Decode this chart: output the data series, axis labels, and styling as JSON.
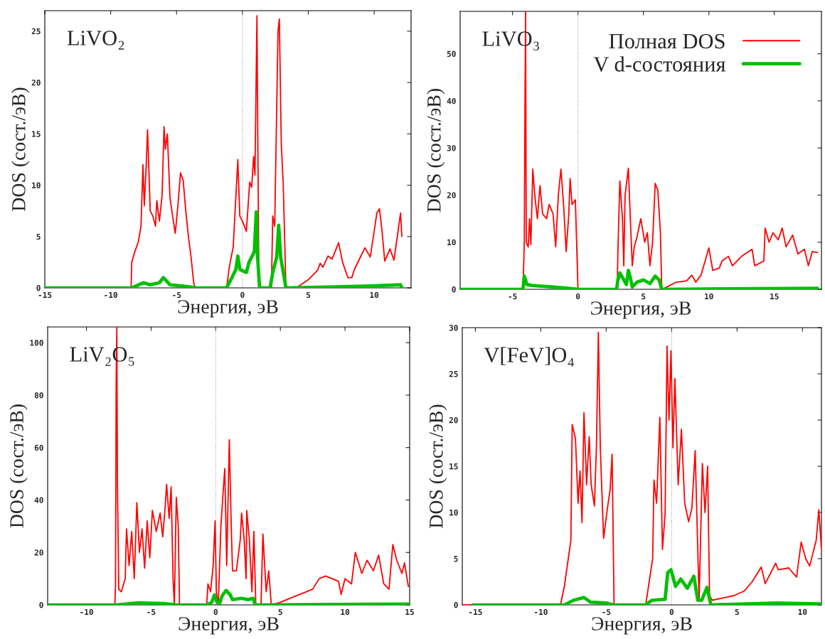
{
  "chart_data": [
    {
      "type": "line",
      "title": "LiVO₂",
      "xlabel": "Энергия, эВ",
      "ylabel": "DOS (сост./эВ)",
      "xlim": [
        -15,
        12.8
      ],
      "ylim": [
        0,
        27
      ],
      "xticks": [
        -15,
        -10,
        -5,
        0,
        5,
        10
      ],
      "yticks": [
        0,
        5,
        10,
        15,
        20,
        25
      ],
      "grid": false,
      "legend": false,
      "ref_lines": [
        {
          "axis": "x",
          "value": 0,
          "color": "#999999",
          "line_style": "dotted"
        }
      ],
      "series": [
        {
          "color": "#ff0000",
          "x": [
            -15,
            -8.45,
            -8.4,
            -8.2,
            -7.9,
            -7.7,
            -7.55,
            -7.45,
            -7.3,
            -7.2,
            -7.0,
            -6.8,
            -6.6,
            -6.5,
            -6.3,
            -6.1,
            -5.95,
            -5.85,
            -5.7,
            -5.5,
            -5.3,
            -5.1,
            -4.9,
            -4.7,
            -4.5,
            -4.3,
            -4.1,
            -3.9,
            -3.7,
            -3.6,
            -1.2,
            -1.0,
            -0.7,
            -0.35,
            -0.2,
            0,
            0.3,
            0.55,
            0.7,
            0.85,
            0.95,
            1.1,
            1.25,
            2.2,
            2.3,
            2.45,
            2.7,
            2.8,
            2.95,
            3.1,
            3.3,
            4.1,
            5,
            5.7,
            5.9,
            6.1,
            6.5,
            6.8,
            7.3,
            7.6,
            8,
            8.3,
            8.5,
            9.3,
            9.7,
            10.0,
            10.2,
            10.4,
            10.6,
            10.8,
            11.2,
            11.5,
            11.8,
            12.0,
            12.1
          ],
          "values": [
            0,
            0,
            2.5,
            3.4,
            4.5,
            6,
            12,
            8,
            12,
            15.4,
            7.5,
            7,
            6,
            8.5,
            6.5,
            9,
            15.7,
            13.5,
            15,
            8.8,
            7,
            5.3,
            8,
            11.2,
            10.5,
            7.5,
            5,
            3,
            0.5,
            0,
            0,
            2,
            4,
            12.5,
            7,
            6.5,
            5.5,
            10.3,
            9.8,
            12.8,
            11,
            26.5,
            0,
            0,
            7,
            6,
            25,
            26.2,
            14,
            10,
            0,
            0,
            0.8,
            1.7,
            2.4,
            2.0,
            3.1,
            2.8,
            4.4,
            2.5,
            1.0,
            1.0,
            1.8,
            3.9,
            3.0,
            5.5,
            7.3,
            7.7,
            5.5,
            2.6,
            3.8,
            2.7,
            5.4,
            7.3,
            5.0
          ]
        },
        {
          "color": "#00c000",
          "x": [
            -15,
            -8.4,
            -7.5,
            -7,
            -6.3,
            -6.0,
            -5.5,
            -4,
            -3.5,
            -1.2,
            -0.8,
            -0.5,
            -0.35,
            -0.2,
            0.3,
            0.5,
            0.9,
            1.05,
            1.15,
            1.3,
            2.1,
            2.3,
            2.6,
            2.75,
            2.9,
            3.3,
            7,
            10,
            12,
            12.1
          ],
          "values": [
            0,
            0,
            0.5,
            0.3,
            0.5,
            1.0,
            0.3,
            0.1,
            0,
            0,
            1,
            1.8,
            3.1,
            1.8,
            1.5,
            2.5,
            3.5,
            7.4,
            3,
            0,
            0,
            1.5,
            3,
            6.1,
            3,
            0,
            0.1,
            0.2,
            0.3,
            0
          ]
        }
      ]
    },
    {
      "type": "line",
      "title": "LiVO₃",
      "xlabel": "Энергия, эВ",
      "ylabel": "DOS (сост./эВ)",
      "xlim": [
        -9,
        18.6
      ],
      "ylim": [
        0,
        59
      ],
      "xticks": [
        -5,
        0,
        5,
        10,
        15
      ],
      "yticks": [
        0,
        10,
        20,
        30,
        40,
        50
      ],
      "grid": false,
      "legend": "top right",
      "ref_lines": [
        {
          "axis": "x",
          "value": 0,
          "color": "#999999",
          "line_style": "dotted"
        }
      ],
      "series": [
        {
          "name": "Полная DOS",
          "color": "#ff0000",
          "x": [
            -9,
            -4.2,
            -4.1,
            -4.05,
            -4.0,
            -3.95,
            -3.8,
            -3.7,
            -3.6,
            -3.45,
            -3.3,
            -3.1,
            -2.9,
            -2.7,
            -2.4,
            -2.2,
            -1.9,
            -1.7,
            -1.5,
            -1.3,
            -1.1,
            -0.9,
            -0.7,
            -0.6,
            -0.45,
            -0.2,
            -0.05,
            0,
            3.0,
            3.05,
            3.2,
            3.4,
            3.5,
            3.6,
            3.85,
            4.0,
            4.15,
            4.3,
            4.5,
            4.8,
            5.1,
            5.3,
            5.5,
            5.7,
            5.9,
            6.1,
            6.3,
            6.4,
            6.6,
            7.5,
            8.3,
            8.7,
            9,
            9.4,
            10,
            10.3,
            10.8,
            11.0,
            11.5,
            11.8,
            12.5,
            13.3,
            13.5,
            14.2,
            14.3,
            14.6,
            14.9,
            15.3,
            15.6,
            15.9,
            16.4,
            16.8,
            17.3,
            17.6,
            17.9,
            18.3
          ],
          "values": [
            0,
            0,
            10,
            38,
            59,
            10,
            9,
            15,
            9.5,
            25.5,
            20,
            15,
            22,
            16,
            15,
            18,
            16,
            9,
            20,
            25.5,
            18,
            8,
            16,
            23.5,
            18,
            19,
            5,
            0,
            0,
            8,
            23,
            15,
            5,
            20,
            25.7,
            15,
            5,
            9,
            11,
            15,
            10,
            12,
            5,
            10,
            22.5,
            21,
            12,
            0,
            0.2,
            1.5,
            1.8,
            3,
            1.5,
            3,
            8.8,
            4,
            4.5,
            6,
            7,
            5,
            7,
            8.5,
            5,
            6,
            13,
            10,
            12,
            10.5,
            13,
            9,
            11.5,
            7.5,
            8.5,
            5,
            8,
            7.8
          ]
        },
        {
          "name": "V d-состояния",
          "color": "#00c000",
          "x": [
            -9,
            -4.2,
            -4.1,
            -3.9,
            -3.5,
            -2,
            -1,
            0,
            2.95,
            3.05,
            3.2,
            3.5,
            3.7,
            3.85,
            4.0,
            4.15,
            4.5,
            5.0,
            5.5,
            5.9,
            6.2,
            6.4,
            18.3
          ],
          "values": [
            0,
            0,
            2.8,
            1,
            0.8,
            0.5,
            0.3,
            0,
            0,
            2,
            3.5,
            2,
            1,
            4,
            2.5,
            0.5,
            1.5,
            2,
            1.2,
            2.8,
            2,
            0,
            0.2
          ]
        }
      ]
    },
    {
      "type": "line",
      "title": "LiV₂O₅",
      "xlabel": "Энергия, эВ",
      "ylabel": "DOS (сост./эВ)",
      "xlim": [
        -13,
        15
      ],
      "ylim": [
        0,
        106
      ],
      "xticks": [
        -10,
        -5,
        0,
        5,
        10,
        15
      ],
      "yticks": [
        0,
        20,
        40,
        60,
        80,
        100
      ],
      "grid": false,
      "legend": false,
      "ref_lines": [
        {
          "axis": "x",
          "value": 0,
          "color": "#999999",
          "line_style": "dotted"
        }
      ],
      "series": [
        {
          "color": "#ff0000",
          "x": [
            -13,
            -7.8,
            -7.75,
            -7.7,
            -7.65,
            -7.6,
            -7.5,
            -7.3,
            -7,
            -6.9,
            -6.7,
            -6.5,
            -6.3,
            -6.1,
            -5.9,
            -5.7,
            -5.5,
            -5.3,
            -5.1,
            -4.9,
            -4.6,
            -4.3,
            -4.1,
            -3.9,
            -3.8,
            -3.6,
            -3.45,
            -3.3,
            -3.2,
            -3.05,
            -2.9,
            -2.8,
            -0.7,
            -0.6,
            -0.4,
            -0.2,
            -0.05,
            0.05,
            0.2,
            0.4,
            0.6,
            0.7,
            0.85,
            1.05,
            1.2,
            1.3,
            1.6,
            1.9,
            2.0,
            2.2,
            2.35,
            2.4,
            2.6,
            2.8,
            2.95,
            3.1,
            3.5,
            3.65,
            3.9,
            4.1,
            4.3,
            5,
            6,
            7,
            7.5,
            8,
            8.5,
            9,
            9.5,
            9.7,
            10,
            10.5,
            10.8,
            11.3,
            11.7,
            12.2,
            12.6,
            13.0,
            13.4,
            13.7,
            14.0,
            14.4,
            14.6,
            14.9
          ],
          "values": [
            0,
            0,
            8,
            85,
            106,
            45,
            6,
            5,
            10,
            29,
            15,
            28,
            10,
            39,
            20,
            29,
            14,
            32,
            18,
            36,
            28,
            35,
            26,
            38,
            46,
            33,
            45,
            10,
            0,
            41,
            30,
            0,
            0,
            8,
            5,
            15,
            32,
            5,
            0,
            30,
            45,
            52,
            15,
            63,
            30,
            13,
            13,
            25,
            35,
            25,
            10,
            36,
            25,
            5,
            28,
            0,
            0,
            27,
            5,
            13,
            0,
            1,
            3,
            5,
            6,
            10,
            11,
            10,
            9,
            4,
            10,
            8,
            20,
            12,
            17,
            13,
            19,
            8,
            6,
            23,
            17,
            12,
            16,
            7
          ]
        },
        {
          "color": "#00c000",
          "x": [
            -13,
            -7.7,
            -6,
            -4,
            -3,
            -0.7,
            -0.3,
            -0.1,
            0.1,
            0.3,
            0.5,
            0.8,
            1.1,
            1.3,
            2,
            2.5,
            2.9,
            3.05,
            14.9
          ],
          "values": [
            0,
            0,
            0.8,
            0.5,
            0,
            0,
            1,
            3.8,
            1,
            0.5,
            3.5,
            5.5,
            4,
            2,
            2.5,
            2,
            2.5,
            0,
            0.3
          ]
        }
      ]
    },
    {
      "type": "line",
      "title": "V[FeV]O₄",
      "xlabel": "Энергия, эВ",
      "ylabel": "DOS (сост./эВ)",
      "xlim": [
        -16,
        11.45
      ],
      "ylim": [
        0,
        30
      ],
      "xticks": [
        -15,
        -10,
        -5,
        0,
        5,
        10
      ],
      "yticks": [
        0,
        5,
        10,
        15,
        20,
        25,
        30
      ],
      "grid": false,
      "legend": false,
      "ref_lines": [
        {
          "axis": "x",
          "value": 0,
          "color": "#999999",
          "line_style": "dotted"
        }
      ],
      "series": [
        {
          "color": "#ff0000",
          "x": [
            -16,
            -8.5,
            -8.2,
            -7.9,
            -7.7,
            -7.6,
            -7.35,
            -7.15,
            -7.0,
            -6.85,
            -6.7,
            -6.5,
            -6.3,
            -6.15,
            -5.9,
            -5.75,
            -5.6,
            -5.45,
            -5.2,
            -4.95,
            -4.7,
            -4.55,
            -4.4,
            -1.98,
            -1.45,
            -1.35,
            -1.15,
            -0.9,
            -0.7,
            -0.5,
            -0.35,
            -0.2,
            -0.05,
            0.1,
            0.25,
            0.5,
            0.75,
            1.0,
            1.3,
            1.55,
            1.8,
            2.1,
            2.35,
            2.55,
            2.75,
            2.9,
            3.1,
            4.75,
            5.55,
            6.15,
            6.85,
            7.15,
            7.95,
            8.15,
            8.95,
            9.55,
            9.9,
            10.25,
            10.55,
            11.05,
            11.25,
            11.45
          ],
          "values": [
            0,
            0,
            2,
            5,
            7,
            19.5,
            18,
            11,
            14.5,
            8.9,
            20.8,
            13,
            18.2,
            13,
            10.7,
            17,
            29.5,
            17,
            7.2,
            10,
            12.5,
            16.3,
            0,
            0,
            5,
            13.5,
            11,
            20.3,
            6,
            9.8,
            28,
            20,
            27.5,
            17,
            24.5,
            13,
            19,
            11,
            9,
            10.5,
            16.7,
            0.5,
            15.3,
            10,
            15,
            1,
            0.5,
            1,
            1.5,
            2.5,
            4.1,
            2.3,
            4.5,
            3.8,
            4,
            3,
            6.8,
            5,
            4.2,
            7,
            10.3,
            6
          ]
        },
        {
          "color": "#00c000",
          "x": [
            -15.2,
            -8.2,
            -7.5,
            -6.7,
            -6.2,
            -5,
            -4.4,
            -2.0,
            -1.5,
            -0.5,
            -0.3,
            -0.05,
            0.3,
            0.7,
            1.2,
            1.7,
            2.0,
            2.3,
            2.7,
            3.0,
            8,
            11.45
          ],
          "values": [
            0,
            0,
            0.5,
            0.8,
            0.3,
            0.2,
            0,
            0,
            0.5,
            0.6,
            3.5,
            3.8,
            2,
            2.8,
            1.8,
            3.1,
            0.5,
            0.5,
            1.9,
            0,
            0.2,
            0.1
          ]
        }
      ]
    }
  ]
}
